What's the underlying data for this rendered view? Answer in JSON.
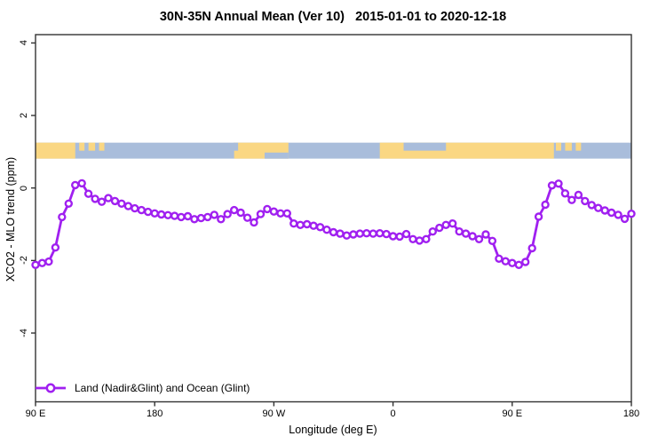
{
  "title": "30N-35N Annual Mean (Ver 10)   2015-01-01 to 2020-12-18",
  "legend": {
    "label": "Land (Nadir&Glint) and Ocean (Glint)"
  },
  "colors": {
    "series": "#A020F0",
    "marker_fill": "#FFFFFF",
    "axis": "#333333",
    "ocean": "#A9BDDB",
    "land": "#FAD783",
    "text": "#000000"
  },
  "chart_data": {
    "type": "line",
    "title": "30N-35N Annual Mean (Ver 10)   2015-01-01 to 2020-12-18",
    "xlabel": "Longitude (deg E)",
    "ylabel": "XCO2 - MLO trend (ppm)",
    "xlim": [
      90,
      540
    ],
    "ylim": [
      -5.6,
      4.25
    ],
    "grid": false,
    "legend_position": "bottom-left",
    "x_ticks": [
      {
        "pos": 90,
        "label": "90 E"
      },
      {
        "pos": 180,
        "label": "180"
      },
      {
        "pos": 270,
        "label": "90 W"
      },
      {
        "pos": 360,
        "label": "0"
      },
      {
        "pos": 450,
        "label": "90 E"
      },
      {
        "pos": 540,
        "label": "180"
      }
    ],
    "y_ticks": [
      {
        "pos": 4,
        "label": "4"
      },
      {
        "pos": 2,
        "label": "2"
      },
      {
        "pos": 0,
        "label": "0"
      },
      {
        "pos": -2,
        "label": "-2"
      },
      {
        "pos": -4,
        "label": "-4"
      }
    ],
    "x_start": 90,
    "x_step": 5,
    "series": [
      {
        "name": "Land (Nadir&Glint) and Ocean (Glint)",
        "marker": "open-circle",
        "values": [
          -2.12,
          -2.07,
          -2.03,
          -1.64,
          -0.8,
          -0.43,
          0.08,
          0.13,
          -0.16,
          -0.3,
          -0.38,
          -0.28,
          -0.36,
          -0.43,
          -0.5,
          -0.56,
          -0.61,
          -0.66,
          -0.7,
          -0.73,
          -0.75,
          -0.77,
          -0.8,
          -0.78,
          -0.86,
          -0.83,
          -0.8,
          -0.74,
          -0.86,
          -0.72,
          -0.61,
          -0.68,
          -0.82,
          -0.95,
          -0.72,
          -0.58,
          -0.65,
          -0.7,
          -0.7,
          -0.98,
          -1.02,
          -1.0,
          -1.04,
          -1.08,
          -1.15,
          -1.22,
          -1.26,
          -1.31,
          -1.28,
          -1.26,
          -1.25,
          -1.26,
          -1.25,
          -1.27,
          -1.33,
          -1.34,
          -1.27,
          -1.41,
          -1.45,
          -1.41,
          -1.2,
          -1.1,
          -1.02,
          -0.98,
          -1.2,
          -1.26,
          -1.33,
          -1.41,
          -1.28,
          -1.46,
          -1.95,
          -2.02,
          -2.07,
          -2.12,
          -2.04,
          -1.66,
          -0.79,
          -0.46,
          0.07,
          0.12,
          -0.15,
          -0.33,
          -0.19,
          -0.36,
          -0.47,
          -0.55,
          -0.62,
          -0.68,
          -0.74,
          -0.85,
          -0.71
        ]
      }
    ],
    "map_band": {
      "comment": "land/ocean strip drawn across plot between data values 0.81 and 1.25",
      "value_top": 1.25,
      "value_bottom": 0.81,
      "base": "ocean",
      "segments": [
        {
          "type": "land",
          "part": "full",
          "from": 90,
          "to": 120
        },
        {
          "type": "land",
          "part": "top",
          "from": 123,
          "to": 127
        },
        {
          "type": "land",
          "part": "top",
          "from": 130,
          "to": 135
        },
        {
          "type": "land",
          "part": "top",
          "from": 138,
          "to": 142
        },
        {
          "type": "land",
          "part": "full",
          "from": 240,
          "to": 281
        },
        {
          "type": "ocean",
          "part": "top",
          "from": 239.5,
          "to": 243
        },
        {
          "type": "ocean",
          "part": "bottom",
          "from": 263,
          "to": 281
        },
        {
          "type": "land",
          "part": "full",
          "from": 350,
          "to": 481.5
        },
        {
          "type": "ocean",
          "part": "top",
          "from": 368,
          "to": 400
        },
        {
          "type": "land",
          "part": "top",
          "from": 483,
          "to": 487
        },
        {
          "type": "land",
          "part": "top",
          "from": 490,
          "to": 495
        },
        {
          "type": "land",
          "part": "top",
          "from": 498,
          "to": 502
        }
      ]
    }
  }
}
